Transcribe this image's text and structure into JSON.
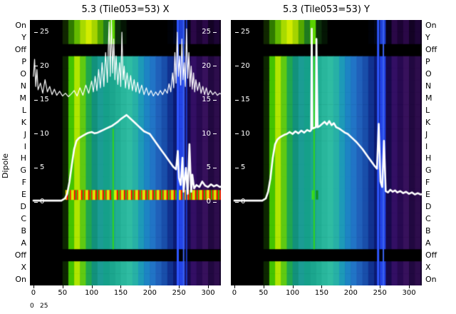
{
  "chart_data": {
    "type": "heatmap",
    "ylabel": "Dipole",
    "row_labels": [
      "On",
      "Y",
      "Off",
      "P",
      "O",
      "N",
      "M",
      "L",
      "K",
      "J",
      "I",
      "H",
      "G",
      "F",
      "E",
      "D",
      "C",
      "B",
      "A",
      "Off",
      "X",
      "On"
    ],
    "row_palette": [
      "top",
      "top",
      "black",
      "main",
      "main",
      "main",
      "main",
      "main",
      "main",
      "main",
      "main",
      "main",
      "main",
      "main",
      "main",
      "main",
      "main",
      "main",
      "main",
      "black",
      "main",
      "main"
    ],
    "e_row_index": 14,
    "x_ticks": [
      0,
      50,
      100,
      150,
      200,
      250,
      300
    ],
    "x_range": [
      -6,
      322
    ],
    "inner_ticks": [
      25,
      20,
      15,
      10,
      5,
      0
    ],
    "inner_axis_range": [
      0,
      27
    ],
    "footer_ticks": [
      "0",
      "25"
    ],
    "noise_colors": [
      "#ff2a00",
      "#ff9100",
      "#ffe000",
      "#7dff00",
      "#1fc800",
      "#ff5400",
      "#c8ff00",
      "#00a83c",
      "#ff0000",
      "#44dd00"
    ],
    "palettes": {
      "top": [
        "#000000",
        "#000000",
        "#000000",
        "#000000",
        "#000000",
        "#102600",
        "#2f7a00",
        "#63b900",
        "#a8da00",
        "#d2ec00",
        "#a4d400",
        "#55a800",
        "#1f7a1f",
        "#5bd400",
        "#0b2e0b",
        "#041504",
        "#000000",
        "#000000",
        "#000000",
        "#000000",
        "#000000",
        "#000000",
        "#000000",
        "#000208",
        "#00061c",
        "#1f3fd6",
        "#07021a",
        "#2a0847",
        "#1b0333",
        "#2a0847",
        "#130224",
        "#1d0536",
        "#0b0116"
      ],
      "main": [
        "#000000",
        "#000000",
        "#000000",
        "#000000",
        "#000000",
        "#0c2600",
        "#43c300",
        "#b0e600",
        "#5fca12",
        "#1fa650",
        "#12917c",
        "#1b9c94",
        "#15a08a",
        "#1ba68e",
        "#21ae94",
        "#29b69c",
        "#2fbca2",
        "#27b0a6",
        "#1d9ab8",
        "#1d84c4",
        "#2174c6",
        "#2060ba",
        "#194eaa",
        "#113290",
        "#0b1a72",
        "#2344e6",
        "#17094c",
        "#330f64",
        "#270950",
        "#37115c",
        "#210840",
        "#2d0d4c",
        "#15052a"
      ]
    },
    "plots": [
      {
        "name": "X",
        "title": "5.3 (Tile053=53) X",
        "inner_right": true,
        "e_row": {
          "type": "noise",
          "x0": 55,
          "x1": 320
        },
        "vlines": [
          {
            "x": 137,
            "color": "#2fd41e",
            "w": 2,
            "r0": 9,
            "r1": 19
          },
          {
            "x": 248,
            "color": "#2e57ff",
            "w": 3,
            "r0": 0,
            "r1": 22
          },
          {
            "x": 258,
            "color": "#3b63f0",
            "w": 2,
            "r0": 0,
            "r1": 22
          },
          {
            "x": 263,
            "color": "#1a39c8",
            "w": 2,
            "r0": 0,
            "r1": 22
          }
        ],
        "jagged": [
          [
            0,
            18.5
          ],
          [
            2,
            21
          ],
          [
            4,
            17
          ],
          [
            6,
            19.5
          ],
          [
            8,
            16.5
          ],
          [
            12,
            17.5
          ],
          [
            16,
            16
          ],
          [
            20,
            18
          ],
          [
            24,
            16.2
          ],
          [
            28,
            17
          ],
          [
            32,
            15.8
          ],
          [
            36,
            16.6
          ],
          [
            40,
            15.7
          ],
          [
            45,
            16.3
          ],
          [
            50,
            15.6
          ],
          [
            55,
            16
          ],
          [
            60,
            15.5
          ],
          [
            65,
            15.9
          ],
          [
            70,
            16.4
          ],
          [
            75,
            15.6
          ],
          [
            80,
            16.8
          ],
          [
            85,
            15.7
          ],
          [
            90,
            17.2
          ],
          [
            95,
            16
          ],
          [
            100,
            17.8
          ],
          [
            103,
            16.2
          ],
          [
            106,
            18.5
          ],
          [
            109,
            16.4
          ],
          [
            112,
            19.5
          ],
          [
            115,
            16.8
          ],
          [
            118,
            20.5
          ],
          [
            121,
            17
          ],
          [
            124,
            22
          ],
          [
            127,
            17.6
          ],
          [
            130,
            26.5
          ],
          [
            132,
            18.5
          ],
          [
            134,
            27
          ],
          [
            136,
            19
          ],
          [
            138,
            24
          ],
          [
            140,
            18
          ],
          [
            142,
            21.5
          ],
          [
            145,
            17.3
          ],
          [
            148,
            20.5
          ],
          [
            150,
            17
          ],
          [
            152,
            25
          ],
          [
            154,
            18
          ],
          [
            156,
            20
          ],
          [
            158,
            16.8
          ],
          [
            161,
            19
          ],
          [
            164,
            16.6
          ],
          [
            167,
            18.6
          ],
          [
            170,
            16.4
          ],
          [
            173,
            18
          ],
          [
            176,
            16.2
          ],
          [
            179,
            17.6
          ],
          [
            182,
            16
          ],
          [
            186,
            17.2
          ],
          [
            190,
            15.8
          ],
          [
            194,
            16.8
          ],
          [
            198,
            15.7
          ],
          [
            202,
            16.4
          ],
          [
            206,
            15.6
          ],
          [
            210,
            16.2
          ],
          [
            214,
            15.7
          ],
          [
            218,
            16.4
          ],
          [
            222,
            15.8
          ],
          [
            226,
            16.6
          ],
          [
            230,
            16
          ],
          [
            233,
            17.4
          ],
          [
            236,
            16.2
          ],
          [
            239,
            19
          ],
          [
            241,
            16.8
          ],
          [
            243,
            22
          ],
          [
            245,
            17.5
          ],
          [
            247,
            25
          ],
          [
            249,
            18.5
          ],
          [
            251,
            21.5
          ],
          [
            253,
            17.2
          ],
          [
            255,
            24
          ],
          [
            257,
            18
          ],
          [
            259,
            20.5
          ],
          [
            261,
            17
          ],
          [
            263,
            25.5
          ],
          [
            265,
            18.2
          ],
          [
            267,
            22
          ],
          [
            269,
            17
          ],
          [
            271,
            20
          ],
          [
            273,
            16.6
          ],
          [
            275,
            19
          ],
          [
            277,
            16.2
          ],
          [
            279,
            18
          ],
          [
            282,
            16.4
          ],
          [
            285,
            17.6
          ],
          [
            288,
            16
          ],
          [
            291,
            17
          ],
          [
            294,
            15.8
          ],
          [
            297,
            16.8
          ],
          [
            300,
            15.7
          ],
          [
            304,
            16.4
          ],
          [
            308,
            15.8
          ],
          [
            312,
            16.2
          ],
          [
            316,
            15.7
          ],
          [
            320,
            16
          ],
          [
            324,
            15.8
          ]
        ],
        "profile": [
          [
            0,
            0.2
          ],
          [
            48,
            0.2
          ],
          [
            54,
            0.5
          ],
          [
            58,
            1.2
          ],
          [
            62,
            3
          ],
          [
            66,
            5.5
          ],
          [
            70,
            7.8
          ],
          [
            74,
            9
          ],
          [
            78,
            9.4
          ],
          [
            82,
            9.6
          ],
          [
            86,
            9.8
          ],
          [
            90,
            10
          ],
          [
            95,
            10.2
          ],
          [
            100,
            10.3
          ],
          [
            105,
            10.1
          ],
          [
            110,
            10.2
          ],
          [
            115,
            10.4
          ],
          [
            120,
            10.6
          ],
          [
            125,
            10.8
          ],
          [
            130,
            11
          ],
          [
            135,
            11.2
          ],
          [
            140,
            11.5
          ],
          [
            145,
            11.8
          ],
          [
            150,
            12.2
          ],
          [
            155,
            12.5
          ],
          [
            160,
            12.8
          ],
          [
            165,
            12.4
          ],
          [
            170,
            12
          ],
          [
            175,
            11.6
          ],
          [
            180,
            11.2
          ],
          [
            185,
            10.8
          ],
          [
            190,
            10.4
          ],
          [
            195,
            10.2
          ],
          [
            200,
            10
          ],
          [
            205,
            9.4
          ],
          [
            210,
            8.8
          ],
          [
            215,
            8.2
          ],
          [
            220,
            7.6
          ],
          [
            225,
            7
          ],
          [
            230,
            6.4
          ],
          [
            235,
            5.8
          ],
          [
            240,
            5.2
          ],
          [
            245,
            4.8
          ],
          [
            248,
            7.5
          ],
          [
            250,
            3.5
          ],
          [
            253,
            2.5
          ],
          [
            256,
            6.5
          ],
          [
            258,
            1.5
          ],
          [
            262,
            5
          ],
          [
            265,
            1.2
          ],
          [
            268,
            8.5
          ],
          [
            271,
            1.5
          ],
          [
            273,
            4
          ],
          [
            276,
            2
          ],
          [
            280,
            2.5
          ],
          [
            285,
            2.2
          ],
          [
            290,
            3
          ],
          [
            295,
            2.4
          ],
          [
            300,
            2.2
          ],
          [
            305,
            2.6
          ],
          [
            310,
            2.3
          ],
          [
            315,
            2.5
          ],
          [
            320,
            2.2
          ],
          [
            324,
            2.3
          ]
        ]
      },
      {
        "name": "Y",
        "title": "5.3 (Tile053=53) Y",
        "inner_right": false,
        "e_row": {
          "type": "cells",
          "cells": [
            {
              "x": 133,
              "w": 5,
              "color": "#3fe01a"
            },
            {
              "x": 140,
              "w": 4,
              "color": "#0f9420"
            }
          ]
        },
        "vlines": [
          {
            "x": 137,
            "color": "#2fd41e",
            "w": 2,
            "r0": 3,
            "r1": 19
          },
          {
            "x": 247,
            "color": "#2e57ff",
            "w": 3,
            "r0": 0,
            "r1": 22
          },
          {
            "x": 256,
            "color": "#3b63f0",
            "w": 2,
            "r0": 0,
            "r1": 22
          }
        ],
        "profile": [
          [
            0,
            0.2
          ],
          [
            48,
            0.2
          ],
          [
            54,
            0.5
          ],
          [
            58,
            1.5
          ],
          [
            62,
            3.5
          ],
          [
            66,
            6.5
          ],
          [
            70,
            8.5
          ],
          [
            74,
            9.2
          ],
          [
            78,
            9.5
          ],
          [
            82,
            9.7
          ],
          [
            86,
            9.9
          ],
          [
            90,
            10
          ],
          [
            95,
            10.3
          ],
          [
            100,
            10
          ],
          [
            105,
            10.4
          ],
          [
            110,
            10.1
          ],
          [
            115,
            10.5
          ],
          [
            120,
            10.2
          ],
          [
            125,
            10.6
          ],
          [
            130,
            10.4
          ],
          [
            132,
            10.6
          ],
          [
            133,
            25.5
          ],
          [
            134,
            10.8
          ],
          [
            137,
            10.9
          ],
          [
            140,
            11
          ],
          [
            141,
            24
          ],
          [
            143,
            11
          ],
          [
            147,
            11.2
          ],
          [
            151,
            11.5
          ],
          [
            155,
            11.8
          ],
          [
            159,
            11.4
          ],
          [
            163,
            11.9
          ],
          [
            167,
            11.3
          ],
          [
            171,
            11.6
          ],
          [
            175,
            11
          ],
          [
            180,
            10.8
          ],
          [
            185,
            10.5
          ],
          [
            190,
            10.2
          ],
          [
            195,
            10
          ],
          [
            200,
            9.6
          ],
          [
            205,
            9.2
          ],
          [
            210,
            8.8
          ],
          [
            215,
            8.3
          ],
          [
            220,
            7.8
          ],
          [
            225,
            7.2
          ],
          [
            230,
            6.6
          ],
          [
            235,
            6
          ],
          [
            240,
            5.4
          ],
          [
            245,
            4.9
          ],
          [
            248,
            11.5
          ],
          [
            251,
            3
          ],
          [
            254,
            2.2
          ],
          [
            257,
            9
          ],
          [
            260,
            1.6
          ],
          [
            264,
            1.4
          ],
          [
            268,
            1.8
          ],
          [
            272,
            1.5
          ],
          [
            276,
            1.7
          ],
          [
            280,
            1.4
          ],
          [
            285,
            1.6
          ],
          [
            290,
            1.3
          ],
          [
            295,
            1.5
          ],
          [
            300,
            1.2
          ],
          [
            305,
            1.4
          ],
          [
            310,
            1.1
          ],
          [
            315,
            1.3
          ],
          [
            320,
            1.1
          ],
          [
            324,
            1.2
          ]
        ]
      }
    ]
  }
}
